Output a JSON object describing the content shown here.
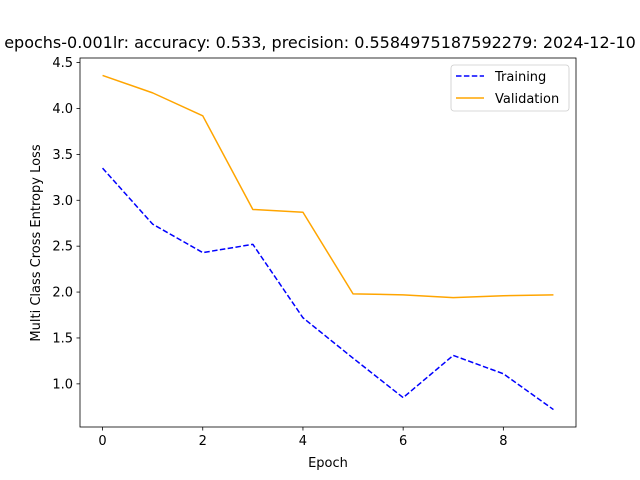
{
  "chart_data": {
    "type": "line",
    "title": "epochs-0.001lr: accuracy: 0.533, precision: 0.5584975187592279: 2024-12-10",
    "xlabel": "Epoch",
    "ylabel": "Multi Class Cross Entropy Loss",
    "x": [
      0,
      1,
      2,
      3,
      4,
      5,
      6,
      7,
      8,
      9
    ],
    "xlim": [
      -0.45,
      9.45
    ],
    "ylim": [
      0.53,
      4.55
    ],
    "xticks": [
      0,
      2,
      4,
      6,
      8
    ],
    "yticks": [
      1.0,
      1.5,
      2.0,
      2.5,
      3.0,
      3.5,
      4.0,
      4.5
    ],
    "xtick_labels": [
      "0",
      "2",
      "4",
      "6",
      "8"
    ],
    "ytick_labels": [
      "1.0",
      "1.5",
      "2.0",
      "2.5",
      "3.0",
      "3.5",
      "4.0",
      "4.5"
    ],
    "grid": false,
    "legend_position": "upper right",
    "series": [
      {
        "name": "Training",
        "color": "#0000ff",
        "style": "dashed",
        "values": [
          3.35,
          2.74,
          2.43,
          2.52,
          1.72,
          1.28,
          0.85,
          1.31,
          1.11,
          0.72
        ]
      },
      {
        "name": "Validation",
        "color": "#ffa500",
        "style": "solid",
        "values": [
          4.36,
          4.17,
          3.92,
          2.9,
          2.87,
          1.98,
          1.97,
          1.94,
          1.96,
          1.97
        ]
      }
    ]
  }
}
